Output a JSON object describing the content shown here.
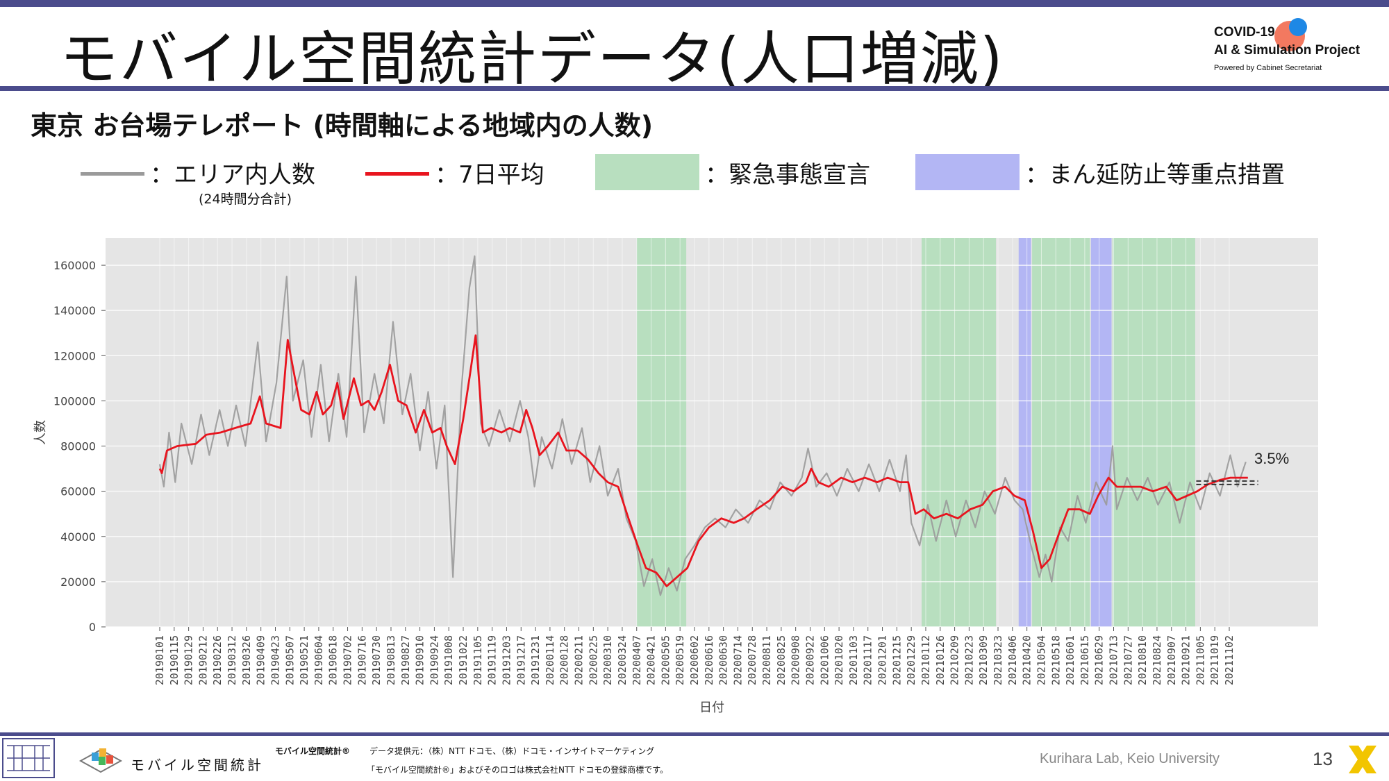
{
  "header": {
    "title": "モバイル空間統計データ(人口増減)",
    "logo_line1": "COVID-19",
    "logo_line2": "AI & Simulation Project",
    "logo_line3": "Powered by Cabinet Secretariat"
  },
  "subtitle": "東京 お台場テレポート (時間軸による地域内の人数)",
  "legend": {
    "area_label": "：エリア内人数",
    "area_sub": "(24時間分合計)",
    "avg_label": "：7日平均",
    "emergency_label": "：緊急事態宣言",
    "priority_label": "：まん延防止等重点措置"
  },
  "colors": {
    "raw_line": "#9a9a9a",
    "avg_line": "#e8141e",
    "emergency": "#b8dfbf",
    "priority": "#b3b6f4",
    "plot_bg": "#e5e5e5",
    "brand": "#4b4c8c"
  },
  "chart_data": {
    "type": "line",
    "xlabel": "日付",
    "ylabel": "人数",
    "ylim": [
      0,
      172000
    ],
    "yticks": [
      0,
      20000,
      40000,
      60000,
      80000,
      100000,
      120000,
      140000,
      160000
    ],
    "ytick_labels": [
      "0",
      "20000",
      "40000",
      "60000",
      "80000",
      "100000",
      "120000",
      "140000",
      "160000"
    ],
    "x_range": [
      "2019-01-01",
      "2021-11-30"
    ],
    "grid": true,
    "xtick_labels": [
      "20190101",
      "20190115",
      "20190129",
      "20190212",
      "20190226",
      "20190312",
      "20190326",
      "20190409",
      "20190423",
      "20190507",
      "20190521",
      "20190604",
      "20190618",
      "20190702",
      "20190716",
      "20190730",
      "20190813",
      "20190827",
      "20190910",
      "20190924",
      "20191008",
      "20191022",
      "20191105",
      "20191119",
      "20191203",
      "20191217",
      "20191231",
      "20200114",
      "20200128",
      "20200211",
      "20200225",
      "20200310",
      "20200324",
      "20200407",
      "20200421",
      "20200505",
      "20200519",
      "20200602",
      "20200616",
      "20200630",
      "20200714",
      "20200728",
      "20200811",
      "20200825",
      "20200908",
      "20200922",
      "20201006",
      "20201020",
      "20201103",
      "20201117",
      "20201201",
      "20201215",
      "20201229",
      "20210112",
      "20210126",
      "20210209",
      "20210223",
      "20210309",
      "20210323",
      "20210406",
      "20210420",
      "20210504",
      "20210518",
      "20210601",
      "20210615",
      "20210629",
      "20210713",
      "20210727",
      "20210810",
      "20210824",
      "20210907",
      "20210921",
      "20211005",
      "20211019",
      "20211102"
    ],
    "annotation": "3.5%",
    "reference_value": 63000,
    "emergency_periods": [
      [
        "2020-04-07",
        "2020-05-25"
      ],
      [
        "2021-01-08",
        "2021-03-21"
      ],
      [
        "2021-04-25",
        "2021-06-20"
      ],
      [
        "2021-07-12",
        "2021-09-30"
      ]
    ],
    "priority_periods": [
      [
        "2021-04-12",
        "2021-04-24"
      ],
      [
        "2021-06-21",
        "2021-07-11"
      ]
    ],
    "series": [
      {
        "name": "エリア内人数",
        "color": "#9a9a9a",
        "points": [
          [
            "2019-01-01",
            72000
          ],
          [
            "2019-01-05",
            62000
          ],
          [
            "2019-01-10",
            86000
          ],
          [
            "2019-01-16",
            64000
          ],
          [
            "2019-01-22",
            90000
          ],
          [
            "2019-02-01",
            72000
          ],
          [
            "2019-02-10",
            94000
          ],
          [
            "2019-02-18",
            76000
          ],
          [
            "2019-02-28",
            96000
          ],
          [
            "2019-03-08",
            80000
          ],
          [
            "2019-03-16",
            98000
          ],
          [
            "2019-03-25",
            80000
          ],
          [
            "2019-04-06",
            126000
          ],
          [
            "2019-04-14",
            82000
          ],
          [
            "2019-04-24",
            108000
          ],
          [
            "2019-05-04",
            155000
          ],
          [
            "2019-05-10",
            100000
          ],
          [
            "2019-05-20",
            118000
          ],
          [
            "2019-05-28",
            84000
          ],
          [
            "2019-06-06",
            116000
          ],
          [
            "2019-06-14",
            82000
          ],
          [
            "2019-06-23",
            112000
          ],
          [
            "2019-07-01",
            84000
          ],
          [
            "2019-07-10",
            155000
          ],
          [
            "2019-07-18",
            86000
          ],
          [
            "2019-07-28",
            112000
          ],
          [
            "2019-08-06",
            90000
          ],
          [
            "2019-08-15",
            135000
          ],
          [
            "2019-08-24",
            94000
          ],
          [
            "2019-09-01",
            112000
          ],
          [
            "2019-09-10",
            78000
          ],
          [
            "2019-09-18",
            104000
          ],
          [
            "2019-09-26",
            70000
          ],
          [
            "2019-10-04",
            98000
          ],
          [
            "2019-10-12",
            22000
          ],
          [
            "2019-10-20",
            104000
          ],
          [
            "2019-10-28",
            150000
          ],
          [
            "2019-11-02",
            164000
          ],
          [
            "2019-11-08",
            90000
          ],
          [
            "2019-11-16",
            80000
          ],
          [
            "2019-11-26",
            96000
          ],
          [
            "2019-12-06",
            82000
          ],
          [
            "2019-12-16",
            100000
          ],
          [
            "2019-12-24",
            84000
          ],
          [
            "2019-12-30",
            62000
          ],
          [
            "2020-01-06",
            84000
          ],
          [
            "2020-01-16",
            70000
          ],
          [
            "2020-01-26",
            92000
          ],
          [
            "2020-02-04",
            72000
          ],
          [
            "2020-02-14",
            88000
          ],
          [
            "2020-02-22",
            64000
          ],
          [
            "2020-03-02",
            80000
          ],
          [
            "2020-03-10",
            58000
          ],
          [
            "2020-03-20",
            70000
          ],
          [
            "2020-03-28",
            48000
          ],
          [
            "2020-04-06",
            38000
          ],
          [
            "2020-04-14",
            18000
          ],
          [
            "2020-04-22",
            30000
          ],
          [
            "2020-04-30",
            14000
          ],
          [
            "2020-05-08",
            26000
          ],
          [
            "2020-05-16",
            16000
          ],
          [
            "2020-05-24",
            30000
          ],
          [
            "2020-06-02",
            36000
          ],
          [
            "2020-06-12",
            44000
          ],
          [
            "2020-06-22",
            48000
          ],
          [
            "2020-07-02",
            44000
          ],
          [
            "2020-07-12",
            52000
          ],
          [
            "2020-07-24",
            46000
          ],
          [
            "2020-08-04",
            56000
          ],
          [
            "2020-08-14",
            52000
          ],
          [
            "2020-08-24",
            64000
          ],
          [
            "2020-09-04",
            58000
          ],
          [
            "2020-09-14",
            66000
          ],
          [
            "2020-09-20",
            79000
          ],
          [
            "2020-09-28",
            62000
          ],
          [
            "2020-10-08",
            68000
          ],
          [
            "2020-10-18",
            58000
          ],
          [
            "2020-10-28",
            70000
          ],
          [
            "2020-11-08",
            60000
          ],
          [
            "2020-11-18",
            72000
          ],
          [
            "2020-11-28",
            60000
          ],
          [
            "2020-12-08",
            74000
          ],
          [
            "2020-12-18",
            60000
          ],
          [
            "2020-12-24",
            76000
          ],
          [
            "2020-12-29",
            46000
          ],
          [
            "2021-01-06",
            36000
          ],
          [
            "2021-01-14",
            54000
          ],
          [
            "2021-01-22",
            38000
          ],
          [
            "2021-02-01",
            56000
          ],
          [
            "2021-02-10",
            40000
          ],
          [
            "2021-02-20",
            56000
          ],
          [
            "2021-03-01",
            44000
          ],
          [
            "2021-03-10",
            60000
          ],
          [
            "2021-03-20",
            50000
          ],
          [
            "2021-03-30",
            66000
          ],
          [
            "2021-04-08",
            56000
          ],
          [
            "2021-04-16",
            52000
          ],
          [
            "2021-04-24",
            36000
          ],
          [
            "2021-05-02",
            22000
          ],
          [
            "2021-05-08",
            32000
          ],
          [
            "2021-05-14",
            20000
          ],
          [
            "2021-05-22",
            44000
          ],
          [
            "2021-05-30",
            38000
          ],
          [
            "2021-06-08",
            58000
          ],
          [
            "2021-06-16",
            46000
          ],
          [
            "2021-06-26",
            64000
          ],
          [
            "2021-07-06",
            54000
          ],
          [
            "2021-07-12",
            80000
          ],
          [
            "2021-07-16",
            52000
          ],
          [
            "2021-07-26",
            66000
          ],
          [
            "2021-08-05",
            56000
          ],
          [
            "2021-08-15",
            66000
          ],
          [
            "2021-08-25",
            54000
          ],
          [
            "2021-09-05",
            64000
          ],
          [
            "2021-09-15",
            46000
          ],
          [
            "2021-09-25",
            64000
          ],
          [
            "2021-10-05",
            52000
          ],
          [
            "2021-10-14",
            68000
          ],
          [
            "2021-10-24",
            58000
          ],
          [
            "2021-11-03",
            76000
          ],
          [
            "2021-11-10",
            62000
          ],
          [
            "2021-11-18",
            73000
          ]
        ]
      },
      {
        "name": "7日平均",
        "color": "#e8141e",
        "points": [
          [
            "2019-01-01",
            70000
          ],
          [
            "2019-01-03",
            68000
          ],
          [
            "2019-01-08",
            78000
          ],
          [
            "2019-01-18",
            80000
          ],
          [
            "2019-02-05",
            81000
          ],
          [
            "2019-02-15",
            85000
          ],
          [
            "2019-03-01",
            86000
          ],
          [
            "2019-03-15",
            88000
          ],
          [
            "2019-03-30",
            90000
          ],
          [
            "2019-04-08",
            102000
          ],
          [
            "2019-04-14",
            90000
          ],
          [
            "2019-04-28",
            88000
          ],
          [
            "2019-05-05",
            127000
          ],
          [
            "2019-05-12",
            110000
          ],
          [
            "2019-05-18",
            96000
          ],
          [
            "2019-05-26",
            94000
          ],
          [
            "2019-06-02",
            104000
          ],
          [
            "2019-06-08",
            94000
          ],
          [
            "2019-06-16",
            98000
          ],
          [
            "2019-06-22",
            108000
          ],
          [
            "2019-06-28",
            92000
          ],
          [
            "2019-07-08",
            110000
          ],
          [
            "2019-07-15",
            98000
          ],
          [
            "2019-07-22",
            100000
          ],
          [
            "2019-07-28",
            96000
          ],
          [
            "2019-08-04",
            104000
          ],
          [
            "2019-08-12",
            116000
          ],
          [
            "2019-08-20",
            100000
          ],
          [
            "2019-08-28",
            98000
          ],
          [
            "2019-09-06",
            86000
          ],
          [
            "2019-09-14",
            96000
          ],
          [
            "2019-09-22",
            86000
          ],
          [
            "2019-09-30",
            88000
          ],
          [
            "2019-10-06",
            80000
          ],
          [
            "2019-10-14",
            72000
          ],
          [
            "2019-10-22",
            92000
          ],
          [
            "2019-10-28",
            110000
          ],
          [
            "2019-11-03",
            129000
          ],
          [
            "2019-11-10",
            86000
          ],
          [
            "2019-11-18",
            88000
          ],
          [
            "2019-11-28",
            86000
          ],
          [
            "2019-12-06",
            88000
          ],
          [
            "2019-12-16",
            86000
          ],
          [
            "2019-12-22",
            96000
          ],
          [
            "2019-12-28",
            88000
          ],
          [
            "2020-01-04",
            76000
          ],
          [
            "2020-01-12",
            80000
          ],
          [
            "2020-01-22",
            86000
          ],
          [
            "2020-01-30",
            78000
          ],
          [
            "2020-02-10",
            78000
          ],
          [
            "2020-02-20",
            74000
          ],
          [
            "2020-03-01",
            68000
          ],
          [
            "2020-03-10",
            64000
          ],
          [
            "2020-03-20",
            62000
          ],
          [
            "2020-03-30",
            48000
          ],
          [
            "2020-04-08",
            36000
          ],
          [
            "2020-04-16",
            26000
          ],
          [
            "2020-04-26",
            24000
          ],
          [
            "2020-05-06",
            18000
          ],
          [
            "2020-05-16",
            22000
          ],
          [
            "2020-05-26",
            26000
          ],
          [
            "2020-06-06",
            38000
          ],
          [
            "2020-06-16",
            44000
          ],
          [
            "2020-06-28",
            48000
          ],
          [
            "2020-07-10",
            46000
          ],
          [
            "2020-07-20",
            48000
          ],
          [
            "2020-08-01",
            52000
          ],
          [
            "2020-08-14",
            56000
          ],
          [
            "2020-08-26",
            62000
          ],
          [
            "2020-09-06",
            60000
          ],
          [
            "2020-09-18",
            64000
          ],
          [
            "2020-09-23",
            70000
          ],
          [
            "2020-09-30",
            64000
          ],
          [
            "2020-10-10",
            62000
          ],
          [
            "2020-10-22",
            66000
          ],
          [
            "2020-11-02",
            64000
          ],
          [
            "2020-11-14",
            66000
          ],
          [
            "2020-11-26",
            64000
          ],
          [
            "2020-12-06",
            66000
          ],
          [
            "2020-12-18",
            64000
          ],
          [
            "2020-12-26",
            64000
          ],
          [
            "2021-01-02",
            50000
          ],
          [
            "2021-01-10",
            52000
          ],
          [
            "2021-01-20",
            48000
          ],
          [
            "2021-02-01",
            50000
          ],
          [
            "2021-02-12",
            48000
          ],
          [
            "2021-02-24",
            52000
          ],
          [
            "2021-03-08",
            54000
          ],
          [
            "2021-03-18",
            60000
          ],
          [
            "2021-03-30",
            62000
          ],
          [
            "2021-04-08",
            58000
          ],
          [
            "2021-04-18",
            56000
          ],
          [
            "2021-04-26",
            42000
          ],
          [
            "2021-05-04",
            26000
          ],
          [
            "2021-05-12",
            30000
          ],
          [
            "2021-05-20",
            40000
          ],
          [
            "2021-05-30",
            52000
          ],
          [
            "2021-06-10",
            52000
          ],
          [
            "2021-06-20",
            50000
          ],
          [
            "2021-06-28",
            58000
          ],
          [
            "2021-07-08",
            66000
          ],
          [
            "2021-07-16",
            62000
          ],
          [
            "2021-07-26",
            62000
          ],
          [
            "2021-08-08",
            62000
          ],
          [
            "2021-08-20",
            60000
          ],
          [
            "2021-09-02",
            62000
          ],
          [
            "2021-09-12",
            56000
          ],
          [
            "2021-09-22",
            58000
          ],
          [
            "2021-10-02",
            60000
          ],
          [
            "2021-10-12",
            63000
          ],
          [
            "2021-10-24",
            65000
          ],
          [
            "2021-11-03",
            66000
          ],
          [
            "2021-11-12",
            66000
          ],
          [
            "2021-11-20",
            66000
          ]
        ]
      }
    ]
  },
  "footer": {
    "brand_label": "モバイル空間統計",
    "source_title": "モバイル空間統計®",
    "source_text": "データ提供元：（株）NTT ドコモ、（株）ドコモ・インサイトマーケティング",
    "trademark": "「モバイル空間統計®」およびそのロゴは株式会社NTT ドコモの登録商標です。",
    "credit": "Kurihara Lab, Keio University",
    "page": "13"
  }
}
